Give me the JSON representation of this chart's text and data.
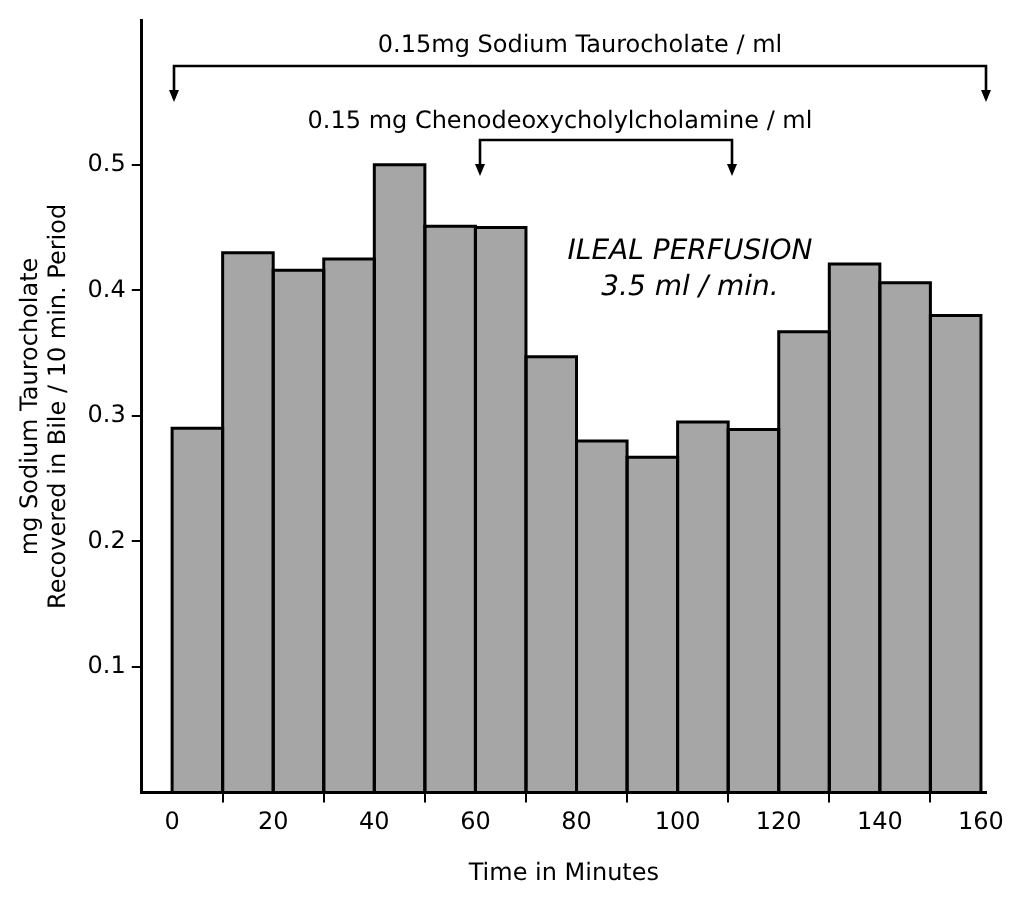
{
  "chart_data": {
    "type": "histogram",
    "xlabel": "Time in Minutes",
    "ylabel": "mg Sodium Taurocholate\nRecovered in Bile / 10 min. Period",
    "bins": [
      0,
      10,
      20,
      30,
      40,
      50,
      60,
      70,
      80,
      90,
      100,
      110,
      120,
      130,
      140,
      150,
      160
    ],
    "values": [
      0.29,
      0.43,
      0.416,
      0.425,
      0.5,
      0.451,
      0.45,
      0.347,
      0.28,
      0.267,
      0.295,
      0.289,
      0.367,
      0.421,
      0.406,
      0.38
    ],
    "color": "#a6a6a6",
    "xlim": [
      -6,
      161
    ],
    "xticks": [
      0,
      20,
      40,
      60,
      80,
      100,
      120,
      140,
      160
    ],
    "ylim": [
      0,
      0.615
    ],
    "yticks": [
      0.1,
      0.2,
      0.3,
      0.4,
      0.5
    ],
    "grid": false,
    "legend": false,
    "annotations": [
      "0.15mg Sodium Taurocholate / ml",
      "0.15 mg Chenodeoxycholylcholamine / ml",
      "ILEAL PERFUSION",
      "3.5 ml / min."
    ]
  }
}
